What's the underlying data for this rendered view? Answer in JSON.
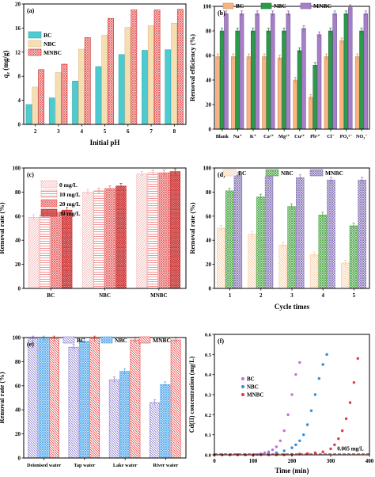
{
  "colors": {
    "bc": "#4ecbd0",
    "nbc": "#f5dfb2",
    "mnbc": "#e33b48",
    "b_bc": "#f7b483",
    "b_nbc": "#2d9a4b",
    "b_mnbc": "#a77fc7",
    "c0": "#f4b4b4",
    "c10": "#f08a8a",
    "c20": "#e86363",
    "c30": "#c62a2a",
    "d_bc": "#f7c69a",
    "d_nbc": "#96d08e",
    "d_mnbc": "#c8b8e0",
    "e_bc": "#8e7fd0",
    "e_nbc": "#56a9ec",
    "e_mnbc": "#e64a4a",
    "f_bc": "#c46ee0",
    "f_nbc": "#2c8fdc",
    "f_mnbc": "#e3373f"
  },
  "chart_data": [
    {
      "panel": "(a)",
      "type": "bar",
      "categories": [
        "2",
        "3",
        "4",
        "5",
        "6",
        "7",
        "8"
      ],
      "series": [
        {
          "name": "BC",
          "values": [
            3.3,
            4.4,
            7.2,
            9.6,
            11.6,
            12.3,
            12.4
          ]
        },
        {
          "name": "NBC",
          "values": [
            6.2,
            8.6,
            12.5,
            14.8,
            16.1,
            16.4,
            16.8
          ]
        },
        {
          "name": "MNBC",
          "values": [
            9.1,
            10.0,
            14.4,
            17.6,
            19.0,
            19.0,
            19.1
          ]
        }
      ],
      "xlabel": "Initial pH",
      "ylabel": "qe (mg/g)",
      "ylim": [
        0,
        20
      ],
      "yticks": [
        "0",
        "4",
        "8",
        "12",
        "16",
        "20"
      ],
      "legend": "top-left"
    },
    {
      "panel": "(b)",
      "type": "bar",
      "categories": [
        "Blank",
        "Na⁺",
        "K⁺",
        "Ca²⁺",
        "Mg²⁺",
        "Cu²⁺",
        "Pb²⁺",
        "Cl⁻",
        "PO₄³⁻",
        "NO₃⁻"
      ],
      "series": [
        {
          "name": "BC",
          "values": [
            59,
            59,
            59,
            59,
            58,
            40,
            26,
            59,
            72,
            59
          ]
        },
        {
          "name": "NBC",
          "values": [
            80,
            80,
            80,
            80,
            80,
            64,
            52,
            80,
            94,
            80
          ]
        },
        {
          "name": "MNBC",
          "values": [
            94,
            94,
            94,
            94,
            94,
            82,
            77,
            94,
            99,
            94
          ]
        }
      ],
      "ylabel": "Removal efficiency (%)",
      "ylim": [
        0,
        100
      ],
      "yticks": [
        "0",
        "20",
        "40",
        "60",
        "80",
        "100"
      ],
      "legend": "top"
    },
    {
      "panel": "(c)",
      "type": "bar",
      "categories": [
        "BC",
        "NBC",
        "MNBC"
      ],
      "series": [
        {
          "name": "0 mg/L",
          "values": [
            59,
            80,
            95
          ]
        },
        {
          "name": "10 mg/L",
          "values": [
            61,
            81,
            96
          ]
        },
        {
          "name": "20 mg/L",
          "values": [
            63,
            83,
            96
          ]
        },
        {
          "name": "30 mg/L",
          "values": [
            65,
            85,
            97
          ]
        }
      ],
      "ylabel": "Removal rate (%)",
      "ylim": [
        0,
        100
      ],
      "yticks": [
        "0",
        "20",
        "40",
        "60",
        "80",
        "100"
      ],
      "legend": "top-left"
    },
    {
      "panel": "(d)",
      "type": "bar",
      "categories": [
        "1",
        "2",
        "3",
        "4",
        "5"
      ],
      "series": [
        {
          "name": "BC",
          "values": [
            50,
            45,
            36,
            28,
            21
          ]
        },
        {
          "name": "NBC",
          "values": [
            81,
            76,
            68,
            61,
            52
          ]
        },
        {
          "name": "MNBC",
          "values": [
            94,
            93,
            92,
            90,
            90
          ]
        }
      ],
      "xlabel": "Cycle times",
      "ylabel": "Removal rate (%)",
      "ylim": [
        0,
        100
      ],
      "yticks": [
        "0",
        "20",
        "40",
        "60",
        "80",
        "100"
      ],
      "legend": "top"
    },
    {
      "panel": "(e)",
      "type": "bar",
      "categories": [
        "Deionised water",
        "Tap water",
        "Lake water",
        "River water"
      ],
      "series": [
        {
          "name": "BC",
          "values": [
            99,
            92,
            65,
            46
          ]
        },
        {
          "name": "NBC",
          "values": [
            99,
            97,
            72,
            61
          ]
        },
        {
          "name": "MNBC",
          "values": [
            99,
            99,
            98,
            98
          ]
        }
      ],
      "ylabel": "Removal rate (%)",
      "ylim": [
        0,
        100
      ],
      "yticks": [
        "0",
        "20",
        "40",
        "60",
        "80",
        "100"
      ],
      "legend": "top"
    },
    {
      "panel": "(f)",
      "type": "scatter",
      "series": [
        {
          "name": "BC",
          "x": [
            0,
            20,
            40,
            60,
            80,
            100,
            110,
            120,
            130,
            140,
            150,
            160,
            170,
            180,
            190,
            200,
            210,
            220
          ],
          "y": [
            0,
            0,
            0,
            0,
            0,
            0,
            0.002,
            0.005,
            0.01,
            0.015,
            0.025,
            0.04,
            0.07,
            0.12,
            0.2,
            0.3,
            0.4,
            0.46
          ]
        },
        {
          "name": "NBC",
          "x": [
            0,
            20,
            40,
            60,
            80,
            100,
            120,
            140,
            160,
            180,
            200,
            210,
            220,
            230,
            240,
            250,
            260,
            270,
            280,
            290
          ],
          "y": [
            0,
            0,
            0,
            0,
            0,
            0,
            0.002,
            0.005,
            0.01,
            0.02,
            0.035,
            0.05,
            0.07,
            0.1,
            0.15,
            0.22,
            0.3,
            0.38,
            0.45,
            0.5
          ]
        },
        {
          "name": "MNBC",
          "x": [
            0,
            20,
            40,
            60,
            80,
            100,
            120,
            140,
            160,
            180,
            200,
            220,
            240,
            260,
            280,
            300,
            310,
            320,
            330,
            340,
            350,
            360,
            370
          ],
          "y": [
            0,
            0,
            0,
            0,
            0,
            0,
            0,
            0,
            0,
            0,
            0.002,
            0.004,
            0.006,
            0.01,
            0.015,
            0.03,
            0.05,
            0.08,
            0.12,
            0.18,
            0.26,
            0.36,
            0.48
          ]
        }
      ],
      "xlabel": "Time (min)",
      "ylabel": "Cd(II) concentration (mg/L)",
      "xlim": [
        0,
        400
      ],
      "ylim": [
        0,
        0.6
      ],
      "xticks": [
        "0",
        "100",
        "200",
        "300",
        "400"
      ],
      "yticks": [
        "0.0",
        "0.1",
        "0.2",
        "0.3",
        "0.4",
        "0.5",
        "0.6"
      ],
      "reference": {
        "value": 0.005,
        "label": "0.005 mg/L"
      },
      "legend": "top-left"
    }
  ]
}
